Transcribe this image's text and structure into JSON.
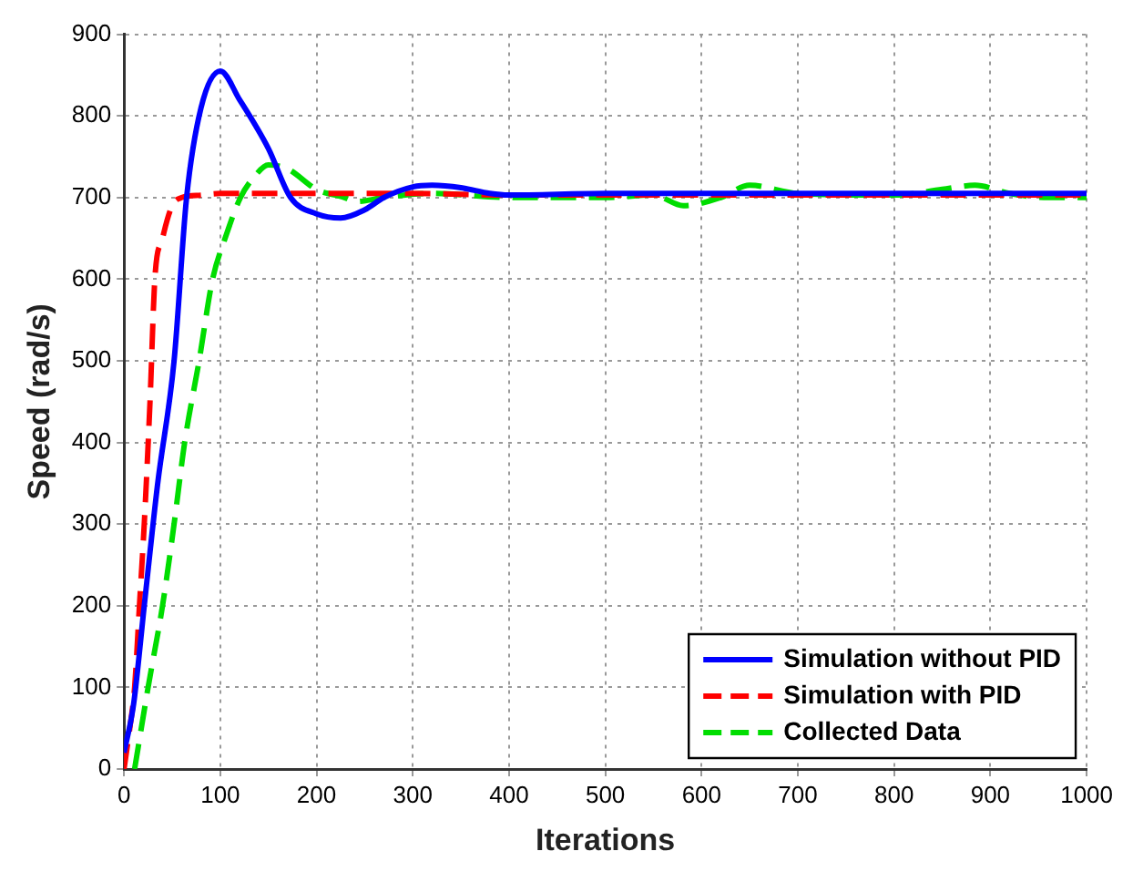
{
  "chart_data": {
    "type": "line",
    "xlabel": "Iterations",
    "ylabel": "Speed (rad/s)",
    "xlim": [
      0,
      1000
    ],
    "ylim": [
      0,
      900
    ],
    "xticks": [
      0,
      100,
      200,
      300,
      400,
      500,
      600,
      700,
      800,
      900,
      1000
    ],
    "yticks": [
      0,
      100,
      200,
      300,
      400,
      500,
      600,
      700,
      800,
      900
    ],
    "grid": true,
    "legend": "bottom right",
    "marker": "none",
    "series": [
      {
        "name": "Simulation without PID",
        "color": "#0000ff",
        "line_style": "solid",
        "x": [
          0,
          10,
          21,
          35,
          52,
          65,
          80,
          100,
          120,
          150,
          173,
          200,
          225,
          250,
          270,
          300,
          320,
          350,
          380,
          400,
          500,
          600,
          700,
          800,
          900,
          1000
        ],
        "values": [
          20,
          80,
          200,
          350,
          500,
          700,
          810,
          855,
          820,
          760,
          700,
          680,
          675,
          685,
          700,
          713,
          715,
          712,
          705,
          703,
          705,
          705,
          705,
          705,
          705,
          705
        ]
      },
      {
        "name": "Simulation with PID",
        "color": "#ff0000",
        "line_style": "dashed",
        "x": [
          0,
          6,
          11,
          16,
          21,
          27,
          32,
          40,
          50,
          60,
          80,
          100,
          200,
          300,
          400,
          500,
          600,
          700,
          800,
          900,
          1000
        ],
        "values": [
          0,
          50,
          100,
          200,
          300,
          450,
          600,
          650,
          690,
          700,
          703,
          705,
          705,
          705,
          703,
          703,
          703,
          703,
          703,
          703,
          703
        ]
      },
      {
        "name": "Collected Data",
        "color": "#00dd00",
        "line_style": "dashed",
        "x": [
          11,
          25,
          40,
          52,
          63,
          78,
          92,
          105,
          121,
          135,
          150,
          170,
          200,
          229,
          241,
          270,
          320,
          400,
          500,
          550,
          581,
          620,
          650,
          700,
          800,
          850,
          884,
          920,
          960,
          1000
        ],
        "values": [
          0,
          100,
          200,
          300,
          400,
          500,
          600,
          650,
          700,
          725,
          740,
          735,
          710,
          700,
          695,
          700,
          705,
          700,
          700,
          703,
          690,
          700,
          715,
          705,
          703,
          710,
          715,
          705,
          700,
          700
        ]
      }
    ]
  }
}
